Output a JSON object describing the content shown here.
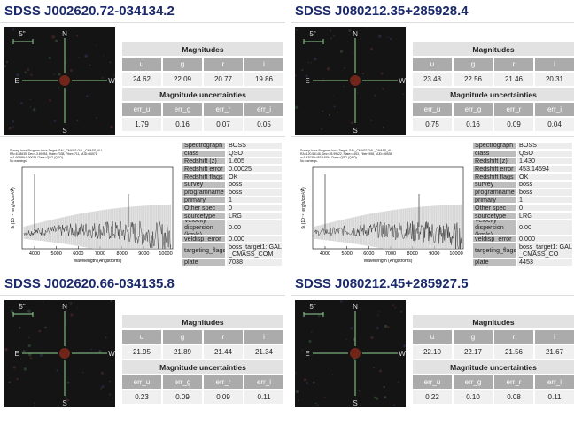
{
  "panels": [
    {
      "title": "SDSS J002620.72-034134.2",
      "finder": {
        "scale": "5\"",
        "n": "N",
        "e": "E",
        "w": "W",
        "s": "S"
      },
      "magnitudes": {
        "title": "Magnitudes",
        "bands": [
          "u",
          "g",
          "r",
          "i"
        ],
        "values": [
          "24.62",
          "22.09",
          "20.77",
          "19.86"
        ]
      },
      "uncertainties": {
        "title": "Magnitude uncertainties",
        "bands": [
          "err_u",
          "err_g",
          "err_r",
          "err_i"
        ],
        "values": [
          "1.79",
          "0.16",
          "0.07",
          "0.05"
        ]
      },
      "spectrum": {
        "header": [
          "Survey: boss  Program: boss  Target: GAL_CMASS GAL_CMASS_ALL",
          "RA=6.58635, Dec=-3.69284, Plate=7038, Fiber=711, MJD=56571",
          "z=1.60489+0.00025 Class=QSO (QSO)",
          "No warnings."
        ],
        "xticks": [
          "4000",
          "5000",
          "6000",
          "7000",
          "8000",
          "9000",
          "10000"
        ],
        "xlabel": "Wavelength (Angstroms)",
        "ylabel": "fλ (10⁻¹⁷ erg/s/cm²/Å)",
        "properties": [
          [
            "Spectrograph",
            "BOSS"
          ],
          [
            "class",
            "QSO"
          ],
          [
            "Redshift (z)",
            "1.605"
          ],
          [
            "Redshift error",
            "0.00025"
          ],
          [
            "Redshift flags",
            "OK"
          ],
          [
            "survey",
            "boss"
          ],
          [
            "programname",
            "boss"
          ],
          [
            "primary",
            "1"
          ],
          [
            "Other spec",
            "0"
          ],
          [
            "sourcetype",
            "LRG"
          ],
          [
            "Velocity dispersion (km/s)",
            "0.00"
          ],
          [
            "veldisp_error",
            "0.000"
          ],
          [
            "targeting_flags",
            "boss_target1: GAL_CMASS_COM"
          ],
          [
            "plate",
            "7038"
          ]
        ]
      }
    },
    {
      "title": "SDSS J080212.35+285928.4",
      "finder": {
        "scale": "5\"",
        "n": "N",
        "e": "E",
        "w": "W",
        "s": "S"
      },
      "magnitudes": {
        "title": "Magnitudes",
        "bands": [
          "u",
          "g",
          "r",
          "i"
        ],
        "values": [
          "23.48",
          "22.56",
          "21.46",
          "20.31"
        ]
      },
      "uncertainties": {
        "title": "Magnitude uncertainties",
        "bands": [
          "err_u",
          "err_g",
          "err_r",
          "err_i"
        ],
        "values": [
          "0.75",
          "0.16",
          "0.09",
          "0.04"
        ]
      },
      "spectrum": {
        "header": [
          "Survey: boss  Program: boss  Target: GAL_CMASS GAL_CMASS_ALL",
          "RA=120.55146, Dec=28.99122, Plate=4453, Fiber=598, MJD=55535",
          "z=1.43035+453.14594 Class=QSO (QSO)",
          "No warnings."
        ],
        "xticks": [
          "4000",
          "5000",
          "6000",
          "7000",
          "8000",
          "9000",
          "10000"
        ],
        "xlabel": "Wavelength (Angstroms)",
        "ylabel": "fλ (10⁻¹⁷ erg/s/cm²/Å)",
        "properties": [
          [
            "Spectrograph",
            "BOSS"
          ],
          [
            "class",
            "QSO"
          ],
          [
            "Redshift (z)",
            "1.430"
          ],
          [
            "Redshift error",
            "453.14594"
          ],
          [
            "Redshift flags",
            "OK"
          ],
          [
            "survey",
            "boss"
          ],
          [
            "programname",
            "boss"
          ],
          [
            "primary",
            "1"
          ],
          [
            "Other spec",
            "0"
          ],
          [
            "sourcetype",
            "LRG"
          ],
          [
            "Velocity dispersion (km/s)",
            "0.00"
          ],
          [
            "veldisp_error",
            "0.000"
          ],
          [
            "targeting_flags",
            "boss_target1: GAL_CMASS_CO"
          ],
          [
            "plate",
            "4453"
          ]
        ]
      }
    },
    {
      "title": "SDSS J002620.66-034135.8",
      "finder": {
        "scale": "5\"",
        "n": "N",
        "e": "E",
        "w": "W",
        "s": "S"
      },
      "magnitudes": {
        "title": "Magnitudes",
        "bands": [
          "u",
          "g",
          "r",
          "i"
        ],
        "values": [
          "21.95",
          "21.89",
          "21.44",
          "21.34"
        ]
      },
      "uncertainties": {
        "title": "Magnitude uncertainties",
        "bands": [
          "err_u",
          "err_g",
          "err_r",
          "err_i"
        ],
        "values": [
          "0.23",
          "0.09",
          "0.09",
          "0.11"
        ]
      }
    },
    {
      "title": "SDSS J080212.45+285927.5",
      "finder": {
        "scale": "5\"",
        "n": "N",
        "e": "E",
        "w": "W",
        "s": "S"
      },
      "magnitudes": {
        "title": "Magnitudes",
        "bands": [
          "u",
          "g",
          "r",
          "i"
        ],
        "values": [
          "22.10",
          "22.17",
          "21.56",
          "21.67"
        ]
      },
      "uncertainties": {
        "title": "Magnitude uncertainties",
        "bands": [
          "err_u",
          "err_g",
          "err_r",
          "err_i"
        ],
        "values": [
          "0.22",
          "0.10",
          "0.08",
          "0.11"
        ]
      }
    }
  ]
}
